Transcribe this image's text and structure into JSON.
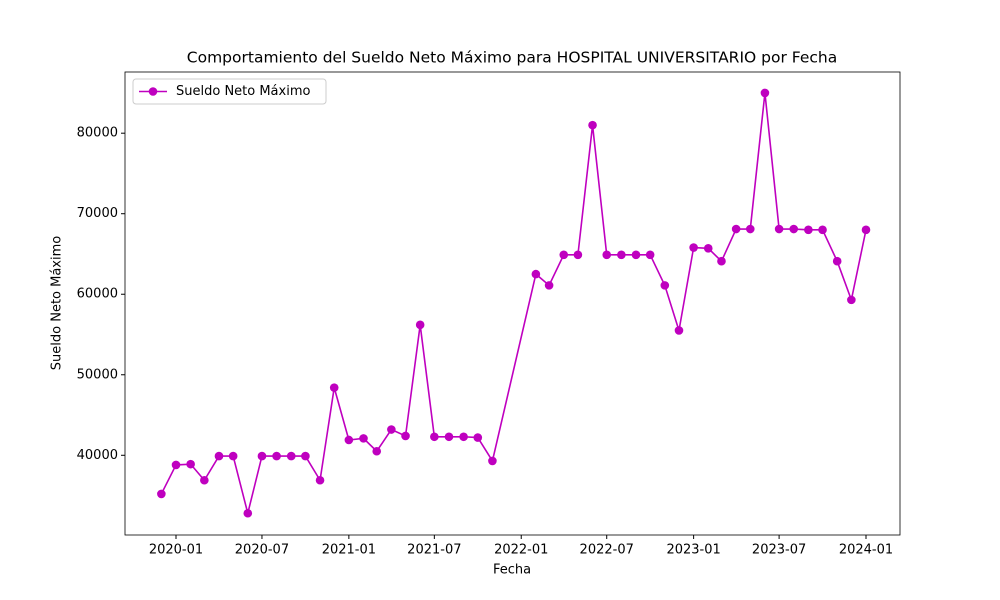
{
  "chart_data": {
    "type": "line",
    "title": "Comportamiento del Sueldo Neto Máximo para HOSPITAL UNIVERSITARIO por Fecha",
    "x_label": "Fecha",
    "y_label": "Sueldo Neto Máximo",
    "x": [
      "2019-12",
      "2020-01",
      "2020-02",
      "2020-03",
      "2020-04",
      "2020-05",
      "2020-06",
      "2020-07",
      "2020-08",
      "2020-09",
      "2020-10",
      "2020-11",
      "2020-12",
      "2021-01",
      "2021-02",
      "2021-03",
      "2021-04",
      "2021-05",
      "2021-06",
      "2021-07",
      "2021-08",
      "2021-09",
      "2021-10",
      "2021-11",
      "2022-02",
      "2022-03",
      "2022-04",
      "2022-05",
      "2022-06",
      "2022-07",
      "2022-08",
      "2022-09",
      "2022-10",
      "2022-11",
      "2022-12",
      "2023-01",
      "2023-02",
      "2023-03",
      "2023-04",
      "2023-05",
      "2023-06",
      "2023-07",
      "2023-08",
      "2023-09",
      "2023-10",
      "2023-11",
      "2023-12",
      "2024-01"
    ],
    "series": [
      {
        "name": "Sueldo Neto Máximo",
        "color": "#bf00bf",
        "values": [
          35200,
          38800,
          38900,
          36900,
          39900,
          39900,
          32800,
          39900,
          39900,
          39900,
          39900,
          36900,
          48400,
          41900,
          42100,
          40500,
          43200,
          42400,
          56200,
          42300,
          42300,
          42300,
          42200,
          39300,
          62500,
          61100,
          64900,
          64900,
          81000,
          64900,
          64900,
          64900,
          64900,
          61100,
          55500,
          65800,
          65700,
          64100,
          68100,
          68100,
          85000,
          68100,
          68100,
          68000,
          68000,
          64100,
          59300,
          68000
        ]
      }
    ],
    "xlim": [
      "2019-09-15",
      "2024-03-13"
    ],
    "xticks": [
      "2020-01",
      "2020-07",
      "2021-01",
      "2021-07",
      "2022-01",
      "2022-07",
      "2023-01",
      "2023-07",
      "2024-01"
    ],
    "ylim": [
      30100,
      87600
    ],
    "yticks": [
      40000,
      50000,
      60000,
      70000,
      80000
    ],
    "legend": "upper left",
    "grid": false
  }
}
